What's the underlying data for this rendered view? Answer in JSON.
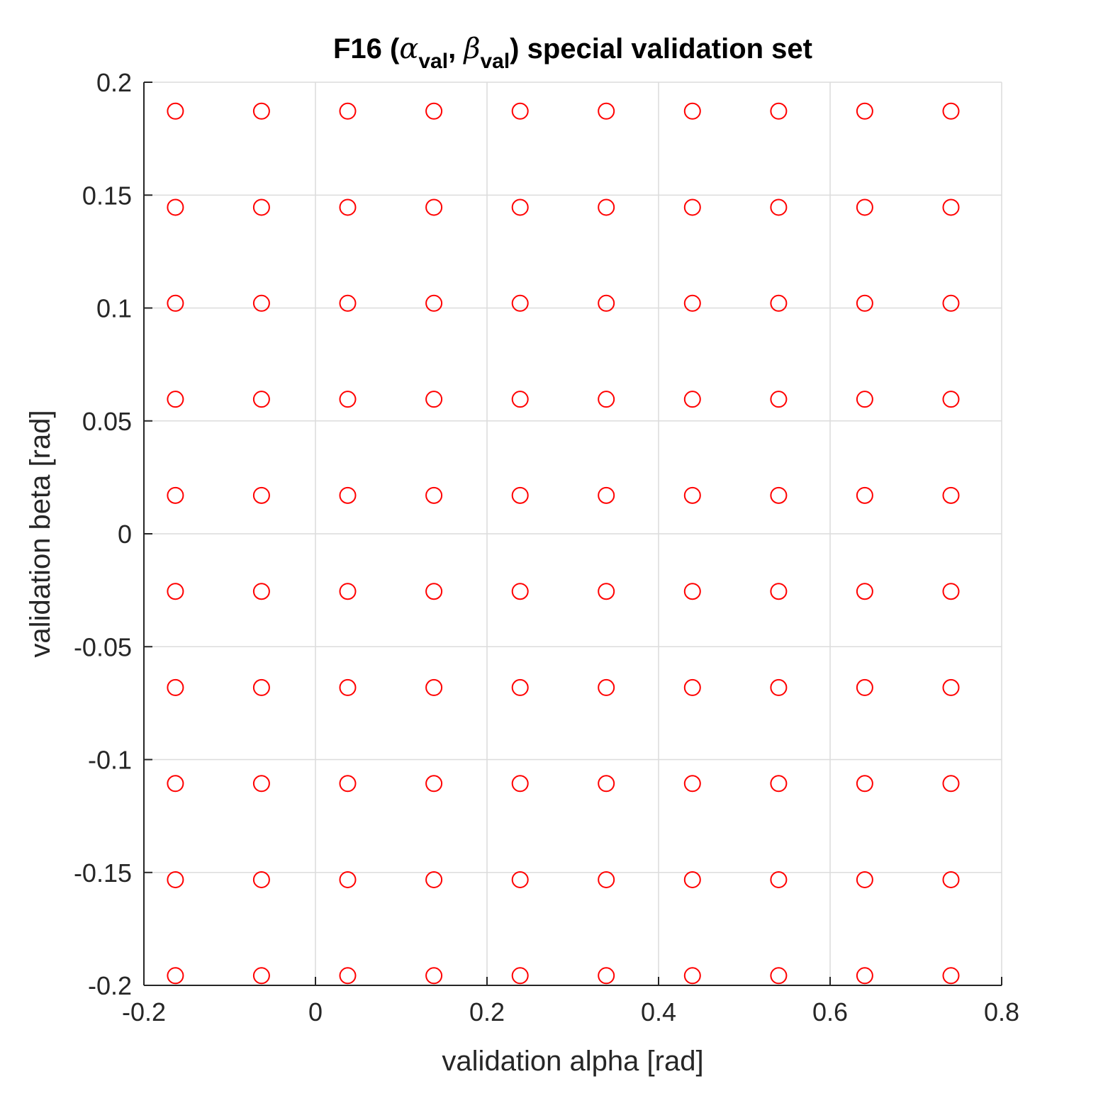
{
  "chart_data": {
    "type": "scatter",
    "title": {
      "prefix": "F16 (",
      "alpha_symbol": "α",
      "alpha_subscript": "val",
      "separator": ", ",
      "beta_symbol": "β",
      "beta_subscript": "val",
      "suffix": ") special validation set"
    },
    "xlabel": "validation alpha [rad]",
    "ylabel": "validation beta [rad]",
    "xlim": [
      -0.2,
      0.8
    ],
    "ylim": [
      -0.2,
      0.2
    ],
    "x_ticks": [
      -0.2,
      0,
      0.2,
      0.4,
      0.6,
      0.8
    ],
    "x_tick_labels": [
      "-0.2",
      "0",
      "0.2",
      "0.4",
      "0.6",
      "0.8"
    ],
    "y_ticks": [
      -0.2,
      -0.15,
      -0.1,
      -0.05,
      0,
      0.05,
      0.1,
      0.15,
      0.2
    ],
    "y_tick_labels": [
      "-0.2",
      "-0.15",
      "-0.1",
      "-0.05",
      "0",
      "0.05",
      "0.1",
      "0.15",
      "0.2"
    ],
    "grid": true,
    "marker": "circle-open",
    "marker_color": "#ff0000",
    "grid_color": "#dcdcdc",
    "axis_color": "#262626",
    "x_values": [
      -0.1633,
      -0.0629,
      0.0376,
      0.1381,
      0.2386,
      0.339,
      0.4395,
      0.54,
      0.6404,
      0.7409
    ],
    "y_values": [
      0.1872,
      0.1446,
      0.1021,
      0.0596,
      0.017,
      -0.0255,
      -0.0681,
      -0.1106,
      -0.1532,
      -0.1957
    ]
  }
}
